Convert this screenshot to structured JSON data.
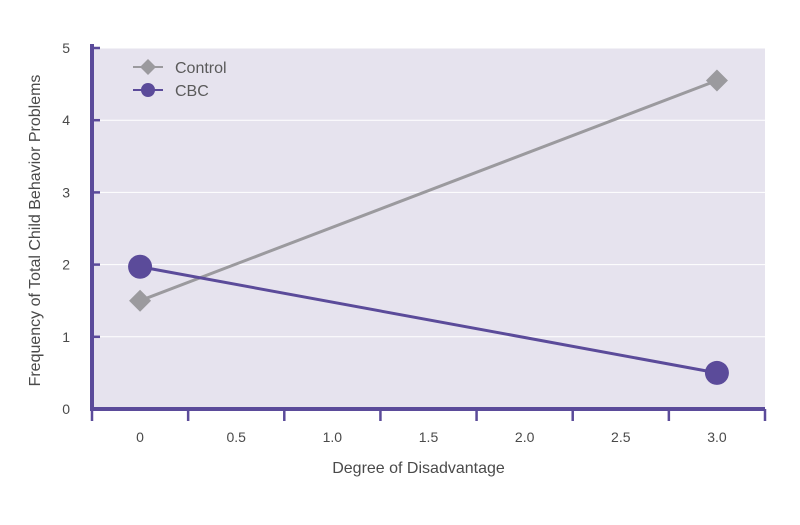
{
  "chart_data": {
    "type": "line",
    "title": "",
    "xlabel": "Degree of Disadvantage",
    "ylabel": "Frequency of Total Child Behavior Problems",
    "xlim": [
      -0.25,
      3.25
    ],
    "ylim": [
      0,
      5
    ],
    "x_ticks": [
      0,
      0.5,
      1.0,
      1.5,
      2.0,
      2.5,
      3.0
    ],
    "x_tick_labels": [
      "0",
      "0.5",
      "1.0",
      "1.5",
      "2.0",
      "2.5",
      "3.0"
    ],
    "y_ticks": [
      0,
      1,
      2,
      3,
      4,
      5
    ],
    "y_tick_labels": [
      "0",
      "1",
      "2",
      "3",
      "4",
      "5"
    ],
    "grid": true,
    "legend_position": "top-left",
    "colors": {
      "plot_background": "#e6e3ee",
      "axis": "#5b4b9a",
      "grid": "#ffffff"
    },
    "series": [
      {
        "name": "Control",
        "marker": "diamond",
        "color": "#9b9a9e",
        "x": [
          0,
          3.0
        ],
        "y": [
          1.5,
          4.55
        ]
      },
      {
        "name": "CBC",
        "marker": "circle",
        "color": "#5b4b9a",
        "x": [
          0,
          3.0
        ],
        "y": [
          1.97,
          0.5
        ]
      }
    ]
  }
}
